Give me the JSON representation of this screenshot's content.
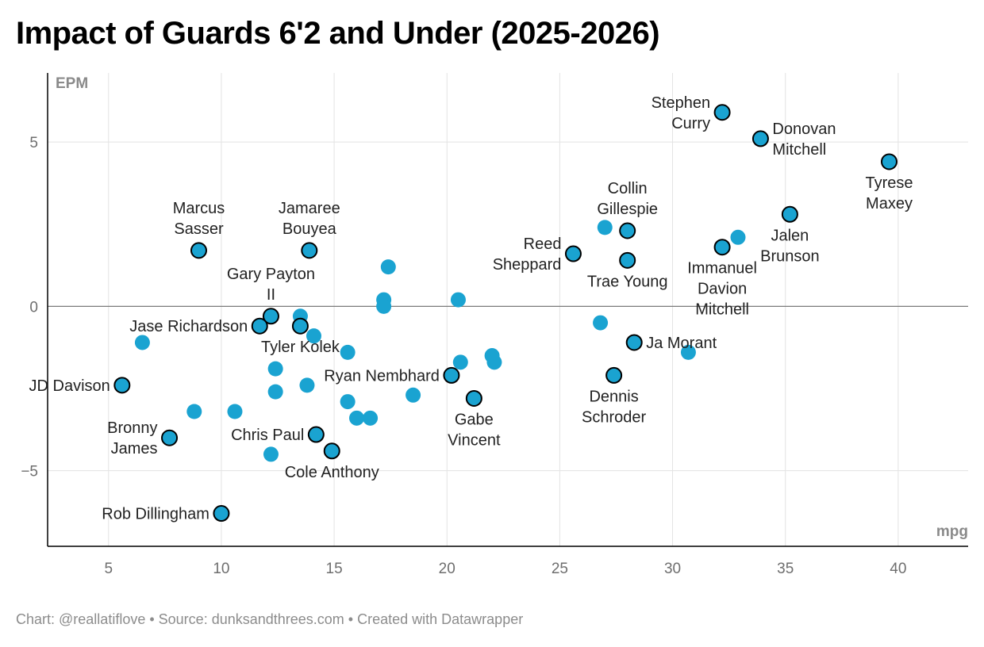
{
  "title": "Impact of Guards 6'2 and Under (2025-2026)",
  "footer": {
    "credit": "Chart: @reallatiflove",
    "sep1": " • ",
    "source": "Source: dunksandthrees.com",
    "sep2": " • ",
    "tool": "Created with Datawrapper"
  },
  "colors": {
    "point_fill": "#1aa3d1",
    "point_stroke": "#000000",
    "gridline": "#e3e3e3",
    "zero_line": "#7a7a7a",
    "axis_line": "#000000"
  },
  "chart_data": {
    "type": "scatter",
    "xlabel": "mpg",
    "ylabel": "EPM",
    "xlim": [
      2.3,
      43.1
    ],
    "ylim": [
      -7.3,
      7.1
    ],
    "xticks": [
      5,
      10,
      15,
      20,
      25,
      30,
      35,
      40
    ],
    "yticks": [
      -5,
      0,
      5
    ],
    "labeled_points": [
      {
        "name": "Stephen Curry",
        "lines": [
          "Stephen",
          "Curry"
        ],
        "x": 32.2,
        "y": 5.9,
        "pos": "left"
      },
      {
        "name": "Donovan Mitchell",
        "lines": [
          "Donovan",
          "Mitchell"
        ],
        "x": 33.9,
        "y": 5.1,
        "pos": "right"
      },
      {
        "name": "Tyrese Maxey",
        "lines": [
          "Tyrese",
          "Maxey"
        ],
        "x": 39.6,
        "y": 4.4,
        "pos": "below"
      },
      {
        "name": "Jalen Brunson",
        "lines": [
          "Jalen",
          "Brunson"
        ],
        "x": 35.2,
        "y": 2.8,
        "pos": "below"
      },
      {
        "name": "Collin Gillespie",
        "lines": [
          "Collin",
          "Gillespie"
        ],
        "x": 28.0,
        "y": 2.3,
        "pos": "above"
      },
      {
        "name": "Reed Sheppard",
        "lines": [
          "Reed",
          "Sheppard"
        ],
        "x": 25.6,
        "y": 1.6,
        "pos": "left"
      },
      {
        "name": "Trae Young",
        "lines": [
          "Trae Young"
        ],
        "x": 28.0,
        "y": 1.4,
        "pos": "below"
      },
      {
        "name": "Immanuel Davion Mitchell",
        "lines": [
          "Immanuel",
          "Davion",
          "Mitchell"
        ],
        "x": 32.2,
        "y": 1.8,
        "pos": "below"
      },
      {
        "name": "Ja Morant",
        "lines": [
          "Ja Morant"
        ],
        "x": 28.3,
        "y": -1.1,
        "pos": "right"
      },
      {
        "name": "Dennis Schroder",
        "lines": [
          "Dennis",
          "Schroder"
        ],
        "x": 27.4,
        "y": -2.1,
        "pos": "below"
      },
      {
        "name": "Marcus Sasser",
        "lines": [
          "Marcus",
          "Sasser"
        ],
        "x": 9.0,
        "y": 1.7,
        "pos": "above"
      },
      {
        "name": "Jamaree Bouyea",
        "lines": [
          "Jamaree",
          "Bouyea"
        ],
        "x": 13.9,
        "y": 1.7,
        "pos": "above"
      },
      {
        "name": "Gary Payton II",
        "lines": [
          "Gary Payton",
          "II"
        ],
        "x": 12.2,
        "y": -0.3,
        "pos": "above"
      },
      {
        "name": "Jase Richardson",
        "lines": [
          "Jase Richardson"
        ],
        "x": 11.7,
        "y": -0.6,
        "pos": "left"
      },
      {
        "name": "Tyler Kolek",
        "lines": [
          "Tyler Kolek"
        ],
        "x": 13.5,
        "y": -0.6,
        "pos": "below"
      },
      {
        "name": "Ryan Nembhard",
        "lines": [
          "Ryan Nembhard"
        ],
        "x": 20.2,
        "y": -2.1,
        "pos": "left"
      },
      {
        "name": "Gabe Vincent",
        "lines": [
          "Gabe",
          "Vincent"
        ],
        "x": 21.2,
        "y": -2.8,
        "pos": "below"
      },
      {
        "name": "JD Davison",
        "lines": [
          "JD Davison"
        ],
        "x": 5.6,
        "y": -2.4,
        "pos": "left"
      },
      {
        "name": "Bronny James",
        "lines": [
          "Bronny",
          "James"
        ],
        "x": 7.7,
        "y": -4.0,
        "pos": "left"
      },
      {
        "name": "Chris Paul",
        "lines": [
          "Chris Paul"
        ],
        "x": 14.2,
        "y": -3.9,
        "pos": "left"
      },
      {
        "name": "Cole Anthony",
        "lines": [
          "Cole Anthony"
        ],
        "x": 14.9,
        "y": -4.4,
        "pos": "below"
      },
      {
        "name": "Rob Dillingham",
        "lines": [
          "Rob Dillingham"
        ],
        "x": 10.0,
        "y": -6.3,
        "pos": "left"
      }
    ],
    "other_points": [
      {
        "x": 17.4,
        "y": 1.2
      },
      {
        "x": 17.2,
        "y": 0.2
      },
      {
        "x": 17.2,
        "y": 0.0
      },
      {
        "x": 20.5,
        "y": 0.2
      },
      {
        "x": 27.0,
        "y": 2.4
      },
      {
        "x": 32.9,
        "y": 2.1
      },
      {
        "x": 26.8,
        "y": -0.5
      },
      {
        "x": 30.7,
        "y": -1.4
      },
      {
        "x": 6.5,
        "y": -1.1
      },
      {
        "x": 13.5,
        "y": -0.3
      },
      {
        "x": 14.1,
        "y": -0.9
      },
      {
        "x": 15.6,
        "y": -1.4
      },
      {
        "x": 12.4,
        "y": -1.9
      },
      {
        "x": 13.8,
        "y": -2.4
      },
      {
        "x": 12.4,
        "y": -2.6
      },
      {
        "x": 15.6,
        "y": -2.9
      },
      {
        "x": 16.0,
        "y": -3.4
      },
      {
        "x": 16.6,
        "y": -3.4
      },
      {
        "x": 18.5,
        "y": -2.7
      },
      {
        "x": 20.6,
        "y": -1.7
      },
      {
        "x": 22.0,
        "y": -1.5
      },
      {
        "x": 22.1,
        "y": -1.7
      },
      {
        "x": 8.8,
        "y": -3.2
      },
      {
        "x": 10.6,
        "y": -3.2
      },
      {
        "x": 12.2,
        "y": -4.5
      }
    ]
  }
}
